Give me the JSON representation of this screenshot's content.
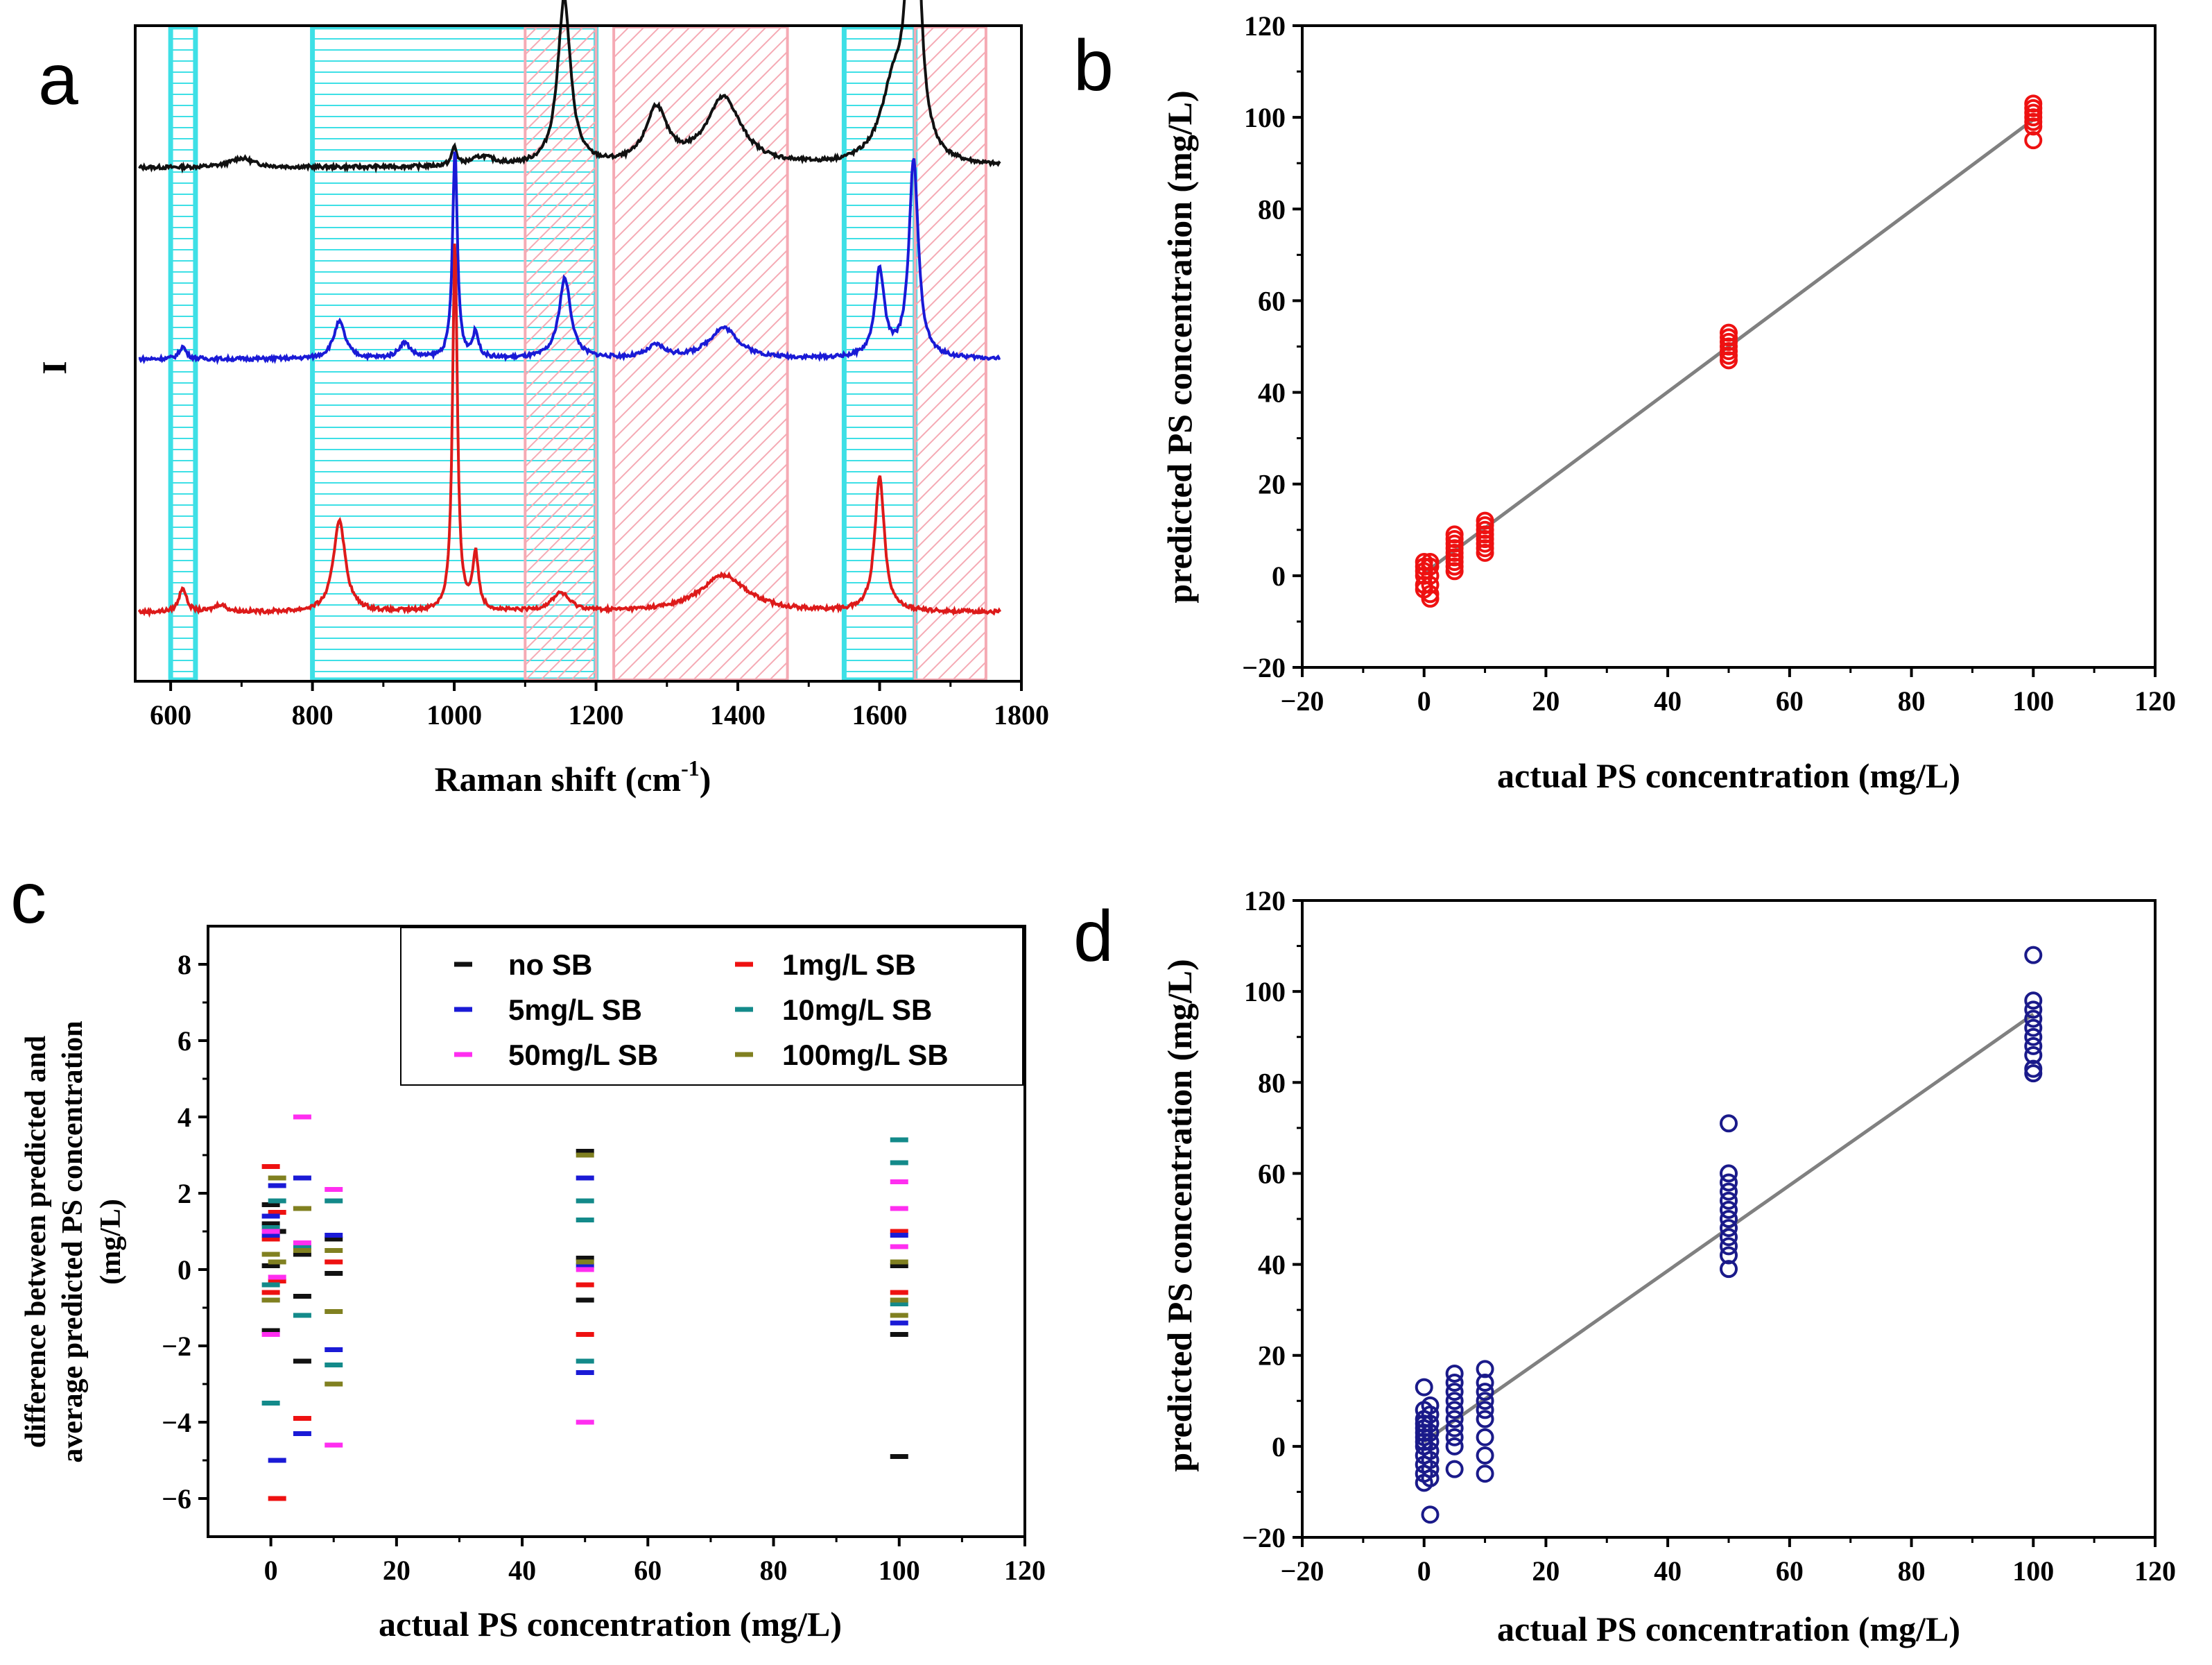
{
  "chart_data": [
    {
      "panel": "a",
      "type": "line",
      "xlabel": "Raman shift (cm",
      "xlabel_sup": "-1",
      "xlabel_tail": ")",
      "ylabel": "I",
      "xlim": [
        550,
        1800
      ],
      "xticks": [
        600,
        800,
        1000,
        1200,
        1400,
        1600,
        1800
      ],
      "yticks_shown": false,
      "highlight_regions": [
        {
          "x0": 600,
          "x1": 635,
          "color": "#3ee0e6",
          "pattern": "horizontal"
        },
        {
          "x0": 800,
          "x1": 1200,
          "color": "#3ee0e6",
          "pattern": "horizontal"
        },
        {
          "x0": 1100,
          "x1": 1200,
          "color": "#f5aab4",
          "pattern": "diagonal"
        },
        {
          "x0": 1225,
          "x1": 1470,
          "color": "#f5aab4",
          "pattern": "diagonal"
        },
        {
          "x0": 1550,
          "x1": 1650,
          "color": "#3ee0e6",
          "pattern": "horizontal"
        },
        {
          "x0": 1650,
          "x1": 1750,
          "color": "#f5aab4",
          "pattern": "diagonal"
        }
      ],
      "series": [
        {
          "name": "black",
          "color": "#111111",
          "baseline": 0.79,
          "peaks": [
            [
              1155,
              0.27,
              11
            ],
            [
              1648,
              0.68,
              8
            ],
            [
              1620,
              0.12,
              22
            ],
            [
              1285,
              0.09,
              18
            ],
            [
              1380,
              0.11,
              30
            ],
            [
              1000,
              0.03,
              4
            ],
            [
              700,
              0.015,
              20
            ],
            [
              1040,
              0.015,
              20
            ]
          ]
        },
        {
          "name": "blue",
          "color": "#1a1ad6",
          "baseline": 0.48,
          "peaks": [
            [
              1001,
              0.34,
              4
            ],
            [
              1156,
              0.13,
              10
            ],
            [
              1648,
              0.32,
              8
            ],
            [
              1600,
              0.14,
              8
            ],
            [
              838,
              0.06,
              10
            ],
            [
              930,
              0.025,
              10
            ],
            [
              1030,
              0.04,
              5
            ],
            [
              617,
              0.02,
              6
            ],
            [
              1380,
              0.05,
              25
            ],
            [
              1285,
              0.02,
              15
            ]
          ]
        },
        {
          "name": "red",
          "color": "#dd1a1a",
          "baseline": 0.07,
          "peaks": [
            [
              1001,
              0.6,
              4
            ],
            [
              838,
              0.15,
              10
            ],
            [
              1600,
              0.22,
              8
            ],
            [
              1030,
              0.09,
              5
            ],
            [
              617,
              0.04,
              6
            ],
            [
              1380,
              0.06,
              40
            ],
            [
              1150,
              0.03,
              15
            ],
            [
              670,
              0.012,
              10
            ]
          ]
        }
      ]
    },
    {
      "panel": "b",
      "type": "scatter",
      "xlabel": "actual PS concentration (mg/L)",
      "ylabel": "predicted PS concentration (mg/L)",
      "xlim": [
        -20,
        120
      ],
      "ylim": [
        -20,
        120
      ],
      "xticks": [
        -20,
        0,
        20,
        40,
        60,
        80,
        100,
        120
      ],
      "yticks": [
        -20,
        0,
        20,
        40,
        60,
        80,
        100,
        120
      ],
      "marker_color": "#ee1111",
      "points": [
        [
          0,
          -3
        ],
        [
          0,
          -2
        ],
        [
          0,
          0
        ],
        [
          0,
          1
        ],
        [
          0,
          2
        ],
        [
          0,
          3
        ],
        [
          1,
          -5
        ],
        [
          1,
          -4
        ],
        [
          1,
          -2
        ],
        [
          1,
          0
        ],
        [
          1,
          2
        ],
        [
          1,
          3
        ],
        [
          5,
          1
        ],
        [
          5,
          2
        ],
        [
          5,
          3
        ],
        [
          5,
          4
        ],
        [
          5,
          5
        ],
        [
          5,
          6
        ],
        [
          5,
          7
        ],
        [
          5,
          8
        ],
        [
          5,
          9
        ],
        [
          10,
          5
        ],
        [
          10,
          6
        ],
        [
          10,
          7
        ],
        [
          10,
          8
        ],
        [
          10,
          9
        ],
        [
          10,
          10
        ],
        [
          10,
          11
        ],
        [
          10,
          12
        ],
        [
          50,
          47
        ],
        [
          50,
          48
        ],
        [
          50,
          49
        ],
        [
          50,
          50
        ],
        [
          50,
          51
        ],
        [
          50,
          52
        ],
        [
          50,
          53
        ],
        [
          100,
          95
        ],
        [
          100,
          98
        ],
        [
          100,
          99
        ],
        [
          100,
          100
        ],
        [
          100,
          101
        ],
        [
          100,
          102
        ],
        [
          100,
          103
        ]
      ],
      "fit_line": {
        "x": [
          0,
          100
        ],
        "y": [
          0.5,
          99.5
        ],
        "color": "#808080"
      }
    },
    {
      "panel": "c",
      "type": "scatter",
      "xlabel": "actual PS concentration (mg/L)",
      "ylabel_lines": [
        "difference between predicted and",
        "average predicted PS concentration",
        "(mg/L)"
      ],
      "xlim": [
        -10,
        120
      ],
      "ylim": [
        -7,
        9
      ],
      "xticks": [
        0,
        20,
        40,
        60,
        80,
        100,
        120
      ],
      "yticks": [
        -6,
        -4,
        -2,
        0,
        2,
        4,
        6,
        8
      ],
      "series": [
        {
          "name": "no SB",
          "color": "#111111",
          "points": [
            [
              0,
              1.7
            ],
            [
              0,
              1.2
            ],
            [
              0,
              -1.6
            ],
            [
              0,
              0.1
            ],
            [
              1,
              1.0
            ],
            [
              5,
              -2.4
            ],
            [
              5,
              -0.7
            ],
            [
              5,
              0.4
            ],
            [
              10,
              0.8
            ],
            [
              10,
              -0.1
            ],
            [
              50,
              3.1
            ],
            [
              50,
              0.3
            ],
            [
              50,
              -0.8
            ],
            [
              100,
              0.1
            ],
            [
              100,
              -1.7
            ],
            [
              100,
              -4.9
            ]
          ]
        },
        {
          "name": "1mg/L SB",
          "color": "#ee1111",
          "points": [
            [
              0,
              2.7
            ],
            [
              0,
              -0.6
            ],
            [
              0,
              0.8
            ],
            [
              1,
              -6.0
            ],
            [
              1,
              1.5
            ],
            [
              1,
              -0.3
            ],
            [
              5,
              -3.9
            ],
            [
              5,
              1.6
            ],
            [
              10,
              0.2
            ],
            [
              50,
              -1.7
            ],
            [
              50,
              -0.4
            ],
            [
              100,
              1.0
            ],
            [
              100,
              -0.6
            ]
          ]
        },
        {
          "name": "5mg/L SB",
          "color": "#1a1ad6",
          "points": [
            [
              0,
              1.4
            ],
            [
              0,
              0.9
            ],
            [
              0,
              -0.8
            ],
            [
              1,
              -5.0
            ],
            [
              1,
              2.2
            ],
            [
              5,
              2.4
            ],
            [
              5,
              -4.3
            ],
            [
              10,
              -2.1
            ],
            [
              10,
              0.9
            ],
            [
              50,
              -2.7
            ],
            [
              50,
              2.4
            ],
            [
              50,
              0.1
            ],
            [
              100,
              0.9
            ],
            [
              100,
              -1.4
            ]
          ]
        },
        {
          "name": "10mg/L SB",
          "color": "#138a8a",
          "points": [
            [
              0,
              -3.5
            ],
            [
              0,
              1.1
            ],
            [
              0,
              -0.4
            ],
            [
              1,
              1.8
            ],
            [
              5,
              -1.2
            ],
            [
              5,
              0.6
            ],
            [
              10,
              1.8
            ],
            [
              10,
              -2.5
            ],
            [
              50,
              1.8
            ],
            [
              50,
              1.3
            ],
            [
              50,
              -2.4
            ],
            [
              100,
              3.4
            ],
            [
              100,
              2.8
            ],
            [
              100,
              -0.9
            ]
          ]
        },
        {
          "name": "50mg/L SB",
          "color": "#ff2ef0",
          "points": [
            [
              0,
              1.0
            ],
            [
              0,
              -1.7
            ],
            [
              1,
              -0.2
            ],
            [
              5,
              4.0
            ],
            [
              5,
              0.7
            ],
            [
              10,
              2.1
            ],
            [
              10,
              -4.6
            ],
            [
              50,
              -4.0
            ],
            [
              50,
              0.0
            ],
            [
              100,
              2.3
            ],
            [
              100,
              1.6
            ],
            [
              100,
              0.6
            ]
          ]
        },
        {
          "name": "100mg/L SB",
          "color": "#808020",
          "points": [
            [
              0,
              0.4
            ],
            [
              0,
              -0.8
            ],
            [
              1,
              2.4
            ],
            [
              1,
              0.2
            ],
            [
              5,
              1.6
            ],
            [
              5,
              0.5
            ],
            [
              10,
              -3.0
            ],
            [
              10,
              -1.1
            ],
            [
              10,
              0.5
            ],
            [
              50,
              3.0
            ],
            [
              50,
              0.2
            ],
            [
              100,
              -0.8
            ],
            [
              100,
              -1.2
            ],
            [
              100,
              0.2
            ]
          ]
        }
      ],
      "legend": {
        "placement": "top-right",
        "columns": 2
      }
    },
    {
      "panel": "d",
      "type": "scatter",
      "xlabel": "actual PS concentration (mg/L)",
      "ylabel": "predicted PS concentration (mg/L)",
      "xlim": [
        -20,
        120
      ],
      "ylim": [
        -20,
        120
      ],
      "xticks": [
        -20,
        0,
        20,
        40,
        60,
        80,
        100,
        120
      ],
      "yticks": [
        -20,
        0,
        20,
        40,
        60,
        80,
        100,
        120
      ],
      "marker_color": "#1a1a8a",
      "points": [
        [
          0,
          -8
        ],
        [
          0,
          -6
        ],
        [
          0,
          -4
        ],
        [
          0,
          -2
        ],
        [
          0,
          0
        ],
        [
          0,
          1
        ],
        [
          0,
          2
        ],
        [
          0,
          3
        ],
        [
          0,
          4
        ],
        [
          0,
          5
        ],
        [
          0,
          6
        ],
        [
          0,
          8
        ],
        [
          0,
          13
        ],
        [
          1,
          -15
        ],
        [
          1,
          -7
        ],
        [
          1,
          -5
        ],
        [
          1,
          -3
        ],
        [
          1,
          -1
        ],
        [
          1,
          1
        ],
        [
          1,
          3
        ],
        [
          1,
          5
        ],
        [
          1,
          7
        ],
        [
          1,
          9
        ],
        [
          5,
          -5
        ],
        [
          5,
          0
        ],
        [
          5,
          2
        ],
        [
          5,
          4
        ],
        [
          5,
          6
        ],
        [
          5,
          8
        ],
        [
          5,
          10
        ],
        [
          5,
          12
        ],
        [
          5,
          14
        ],
        [
          5,
          16
        ],
        [
          10,
          -6
        ],
        [
          10,
          -2
        ],
        [
          10,
          2
        ],
        [
          10,
          6
        ],
        [
          10,
          8
        ],
        [
          10,
          10
        ],
        [
          10,
          12
        ],
        [
          10,
          14
        ],
        [
          10,
          17
        ],
        [
          50,
          39
        ],
        [
          50,
          42
        ],
        [
          50,
          44
        ],
        [
          50,
          46
        ],
        [
          50,
          48
        ],
        [
          50,
          50
        ],
        [
          50,
          52
        ],
        [
          50,
          54
        ],
        [
          50,
          56
        ],
        [
          50,
          58
        ],
        [
          50,
          60
        ],
        [
          50,
          71
        ],
        [
          100,
          82
        ],
        [
          100,
          83
        ],
        [
          100,
          86
        ],
        [
          100,
          88
        ],
        [
          100,
          90
        ],
        [
          100,
          92
        ],
        [
          100,
          94
        ],
        [
          100,
          96
        ],
        [
          100,
          98
        ],
        [
          100,
          108
        ]
      ],
      "fit_line": {
        "x": [
          0,
          100
        ],
        "y": [
          1,
          95
        ],
        "color": "#808080"
      }
    }
  ]
}
